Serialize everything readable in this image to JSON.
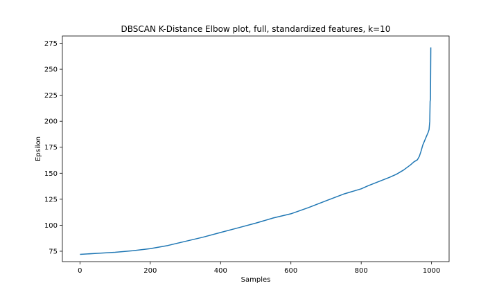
{
  "chart_data": {
    "type": "line",
    "title": "DBSCAN K-Distance Elbow plot, full, standardized features, k=10",
    "xlabel": "Samples",
    "ylabel": "Epsilon",
    "xlim": [
      -50,
      1050
    ],
    "ylim": [
      65,
      282
    ],
    "xticks": [
      0,
      200,
      400,
      600,
      800,
      1000
    ],
    "yticks": [
      75,
      100,
      125,
      150,
      175,
      200,
      225,
      250,
      275
    ],
    "grid": false,
    "line_color": "#1f77b4",
    "series": [
      {
        "x": [
          0,
          50,
          100,
          150,
          200,
          250,
          300,
          350,
          400,
          450,
          500,
          550,
          600,
          650,
          700,
          750,
          800,
          820,
          850,
          880,
          900,
          920,
          940,
          950,
          960,
          965,
          970,
          975,
          980,
          985,
          990,
          993,
          995,
          996,
          997,
          998
        ],
        "y": [
          72,
          73,
          74,
          75.5,
          77.5,
          80.5,
          84.5,
          88.5,
          93,
          97.5,
          102,
          107,
          111,
          117,
          123.5,
          130,
          135,
          138,
          142,
          146,
          149,
          153,
          158,
          161,
          163,
          166,
          171,
          177,
          181,
          185,
          189,
          192,
          200,
          219,
          221,
          271
        ]
      }
    ]
  }
}
